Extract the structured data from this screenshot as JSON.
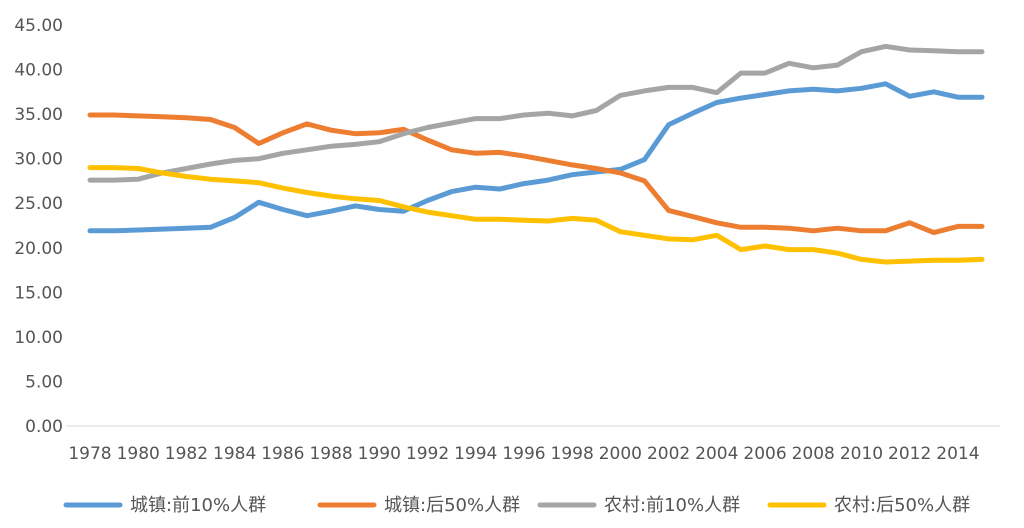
{
  "chart_data": {
    "type": "line",
    "title": "",
    "xlabel": "",
    "ylabel": "",
    "ylim": [
      0,
      45
    ],
    "yticks": [
      "0.00",
      "5.00",
      "10.00",
      "15.00",
      "20.00",
      "25.00",
      "30.00",
      "35.00",
      "40.00",
      "45.00"
    ],
    "x_tick_labels": [
      "1978",
      "1980",
      "1982",
      "1984",
      "1986",
      "1988",
      "1990",
      "1992",
      "1994",
      "1996",
      "1998",
      "2000",
      "2002",
      "2004",
      "2006",
      "2008",
      "2010",
      "2012",
      "2014"
    ],
    "x": [
      1978,
      1979,
      1980,
      1981,
      1982,
      1983,
      1984,
      1985,
      1986,
      1987,
      1988,
      1989,
      1990,
      1991,
      1992,
      1993,
      1994,
      1995,
      1996,
      1997,
      1998,
      1999,
      2000,
      2001,
      2002,
      2003,
      2004,
      2005,
      2006,
      2007,
      2008,
      2009,
      2010,
      2011,
      2012,
      2013,
      2014,
      2015
    ],
    "grid": false,
    "legend_position": "bottom",
    "series": [
      {
        "name": "城镇:前10%人群",
        "color": "#5B9BD5",
        "values": [
          21.9,
          21.9,
          22.0,
          22.1,
          22.2,
          22.3,
          23.4,
          25.1,
          24.3,
          23.6,
          24.1,
          24.7,
          24.3,
          24.1,
          25.3,
          26.3,
          26.8,
          26.6,
          27.2,
          27.6,
          28.2,
          28.5,
          28.8,
          29.9,
          33.8,
          35.1,
          36.3,
          36.8,
          37.2,
          37.6,
          37.8,
          37.6,
          37.9,
          38.4,
          37.0,
          37.5,
          36.9,
          36.9
        ]
      },
      {
        "name": "城镇:后50%人群",
        "color": "#ED7D31",
        "values": [
          34.9,
          34.9,
          34.8,
          34.7,
          34.6,
          34.4,
          33.5,
          31.7,
          32.9,
          33.9,
          33.2,
          32.8,
          32.9,
          33.3,
          32.1,
          31.0,
          30.6,
          30.7,
          30.3,
          29.8,
          29.3,
          28.9,
          28.4,
          27.5,
          24.2,
          23.5,
          22.8,
          22.3,
          22.3,
          22.2,
          21.9,
          22.2,
          21.9,
          21.9,
          22.8,
          21.7,
          22.4,
          22.4
        ]
      },
      {
        "name": "农村:前10%人群",
        "color": "#A5A5A5",
        "values": [
          27.6,
          27.6,
          27.7,
          28.4,
          28.9,
          29.4,
          29.8,
          30.0,
          30.6,
          31.0,
          31.4,
          31.6,
          31.9,
          32.8,
          33.5,
          34.0,
          34.5,
          34.5,
          34.9,
          35.1,
          34.8,
          35.4,
          37.1,
          37.6,
          38.0,
          38.0,
          37.4,
          39.6,
          39.6,
          40.7,
          40.2,
          40.5,
          42.0,
          42.6,
          42.2,
          42.1,
          42.0,
          42.0
        ]
      },
      {
        "name": "农村:后50%人群",
        "color": "#FFC000",
        "values": [
          29.0,
          29.0,
          28.9,
          28.4,
          28.0,
          27.7,
          27.5,
          27.3,
          26.7,
          26.2,
          25.8,
          25.5,
          25.3,
          24.6,
          24.0,
          23.6,
          23.2,
          23.2,
          23.1,
          23.0,
          23.3,
          23.1,
          21.8,
          21.4,
          21.0,
          20.9,
          21.4,
          19.8,
          20.2,
          19.8,
          19.8,
          19.4,
          18.7,
          18.4,
          18.5,
          18.6,
          18.6,
          18.7
        ]
      }
    ]
  }
}
